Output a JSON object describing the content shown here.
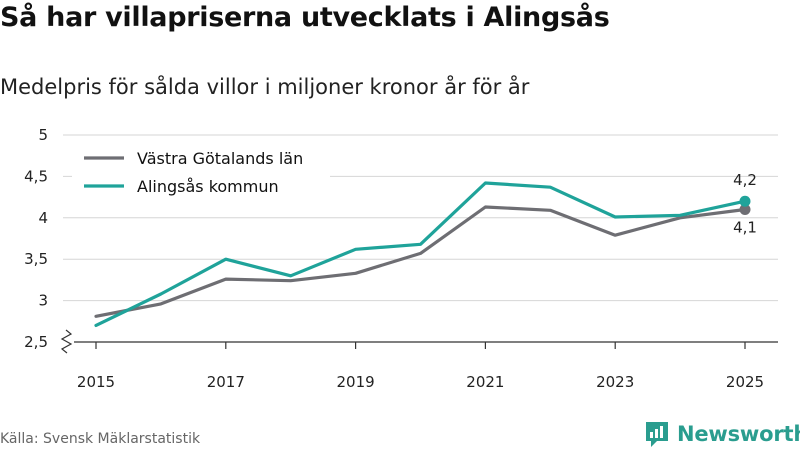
{
  "header": {
    "title": "Så har villapriserna utvecklats i Alingsås",
    "subtitle": "Medelpris för sålda villor i miljoner kronor år för år"
  },
  "footer": {
    "source": "Källa: Svensk Mäklarstatistik",
    "brand": "Newsworthy",
    "brand_icon": "newsworthy-logo-icon"
  },
  "colors": {
    "vastra": "#6e6e73",
    "alingsas": "#1fa39a",
    "grid": "#d6d6d6",
    "axis": "#333333",
    "brand": "#2a9d8f"
  },
  "chart_data": {
    "type": "line",
    "title": "Så har villapriserna utvecklats i Alingsås",
    "subtitle": "Medelpris för sålda villor i miljoner kronor år för år",
    "xlabel": "",
    "ylabel": "",
    "x": [
      2015,
      2016,
      2017,
      2018,
      2019,
      2020,
      2021,
      2022,
      2023,
      2024,
      2025
    ],
    "x_tick_labels": [
      "2015",
      "2017",
      "2019",
      "2021",
      "2023",
      "2025"
    ],
    "y_tick_labels": [
      "2,5",
      "3",
      "3,5",
      "4",
      "4,5",
      "5"
    ],
    "ylim": [
      2.5,
      5
    ],
    "y_axis_break": true,
    "grid": true,
    "legend_position": "top-left",
    "series": [
      {
        "name": "Västra Götalands län",
        "color": "#6e6e73",
        "values": [
          2.81,
          2.96,
          3.26,
          3.24,
          3.33,
          3.57,
          4.13,
          4.09,
          3.79,
          4.0,
          4.1
        ],
        "end_label": "4,1"
      },
      {
        "name": "Alingsås kommun",
        "color": "#1fa39a",
        "values": [
          2.7,
          3.08,
          3.5,
          3.3,
          3.62,
          3.68,
          4.42,
          4.37,
          4.01,
          4.03,
          4.2
        ],
        "end_label": "4,2"
      }
    ]
  }
}
